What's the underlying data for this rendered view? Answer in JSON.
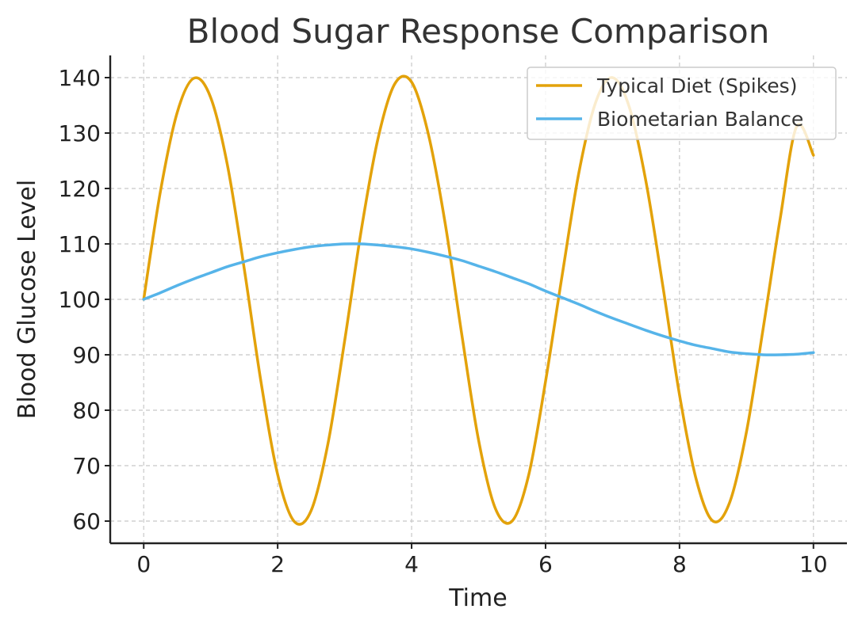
{
  "chart_data": {
    "type": "line",
    "title": "Blood Sugar Response Comparison",
    "xlabel": "Time",
    "ylabel": "Blood Glucose Level",
    "xlim": [
      -0.5,
      10.5
    ],
    "ylim": [
      56,
      144
    ],
    "xticks": [
      "0",
      "2",
      "4",
      "6",
      "8",
      "10"
    ],
    "yticks": [
      "60",
      "70",
      "80",
      "90",
      "100",
      "110",
      "120",
      "130",
      "140"
    ],
    "grid": true,
    "legend_position": "top-right",
    "series": [
      {
        "name": "Typical Diet (Spikes)",
        "color": "#E3A20A",
        "x": [
          0,
          0.25,
          0.5,
          0.75,
          1,
          1.25,
          1.5,
          1.75,
          2,
          2.25,
          2.5,
          2.75,
          3,
          3.25,
          3.5,
          3.75,
          4,
          4.25,
          4.5,
          4.75,
          5,
          5.25,
          5.5,
          5.75,
          6,
          6.25,
          6.5,
          6.75,
          7,
          7.25,
          7.5,
          7.75,
          8,
          8.25,
          8.5,
          8.75,
          9,
          9.25,
          9.5,
          9.75,
          10
        ],
        "values": [
          100,
          119.5,
          133.7,
          139.9,
          136.4,
          124.2,
          105.6,
          85.2,
          68.4,
          59.9,
          61.9,
          73.9,
          92.5,
          112.6,
          129.1,
          138.9,
          139.2,
          129.8,
          113.8,
          93.6,
          74.6,
          62.3,
          60.0,
          68.4,
          85.2,
          104.5,
          123.0,
          135.6,
          140.0,
          134.7,
          121.2,
          102.5,
          82.8,
          67.5,
          60.0,
          63.4,
          76.1,
          94.8,
          114.3,
          131.2,
          126.0
        ]
      },
      {
        "name": "Biometarian Balance",
        "color": "#56B4E9",
        "x": [
          0,
          0.25,
          0.5,
          0.75,
          1,
          1.25,
          1.5,
          1.75,
          2,
          2.25,
          2.5,
          2.75,
          3,
          3.25,
          3.5,
          3.75,
          4,
          4.25,
          4.5,
          4.75,
          5,
          5.25,
          5.5,
          5.75,
          6,
          6.25,
          6.5,
          6.75,
          7,
          7.25,
          7.5,
          7.75,
          8,
          8.25,
          8.5,
          8.75,
          9,
          9.25,
          9.5,
          9.75,
          10
        ],
        "values": [
          100,
          101.2,
          102.5,
          103.7,
          104.8,
          105.9,
          106.8,
          107.7,
          108.4,
          109.0,
          109.5,
          109.8,
          110.0,
          110.0,
          109.8,
          109.5,
          109.1,
          108.5,
          107.8,
          107.0,
          106.0,
          105.0,
          103.9,
          102.8,
          101.5,
          100.3,
          99.1,
          97.8,
          96.6,
          95.5,
          94.4,
          93.4,
          92.5,
          91.7,
          91.1,
          90.5,
          90.2,
          90.0,
          90.0,
          90.1,
          90.4
        ]
      }
    ]
  }
}
